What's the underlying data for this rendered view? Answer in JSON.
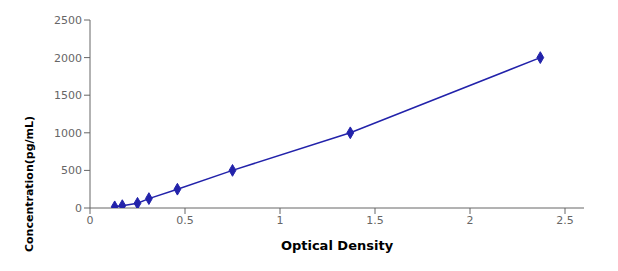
{
  "chart_data": {
    "type": "line",
    "x": [
      0.13,
      0.17,
      0.25,
      0.31,
      0.46,
      0.75,
      1.37,
      2.37
    ],
    "values": [
      15.6,
      31.3,
      62.5,
      125.0,
      250.0,
      500.0,
      1000.0,
      2000.0
    ],
    "xlabel": "Optical Density",
    "ylabel": "Concentration(pg/mL)",
    "xlim": [
      0.0,
      2.6
    ],
    "ylim": [
      0,
      2500
    ],
    "xticks": [
      0,
      0.5,
      1.0,
      1.5,
      2.0,
      2.5
    ],
    "yticks": [
      0,
      500,
      1000,
      1500,
      2000,
      2500
    ],
    "color": "#2222AA",
    "marker": "diamond"
  }
}
